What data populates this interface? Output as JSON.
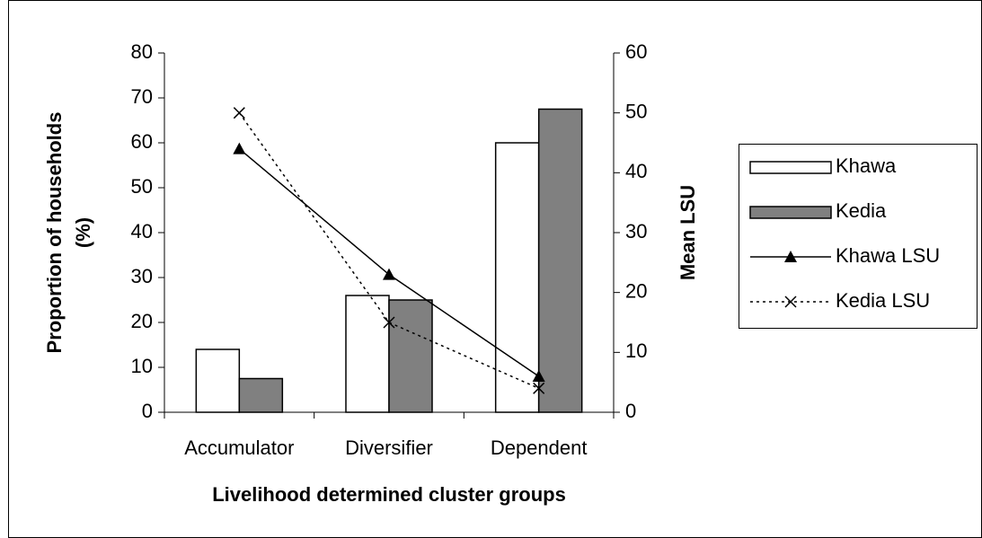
{
  "chart_data": {
    "type": "bar",
    "x_label": "Livelihood determined cluster groups",
    "y_label": [
      "Proportion of households",
      "(%)"
    ],
    "y2_label": "Mean LSU",
    "categories": [
      "Accumulator",
      "Diversifier",
      "Dependent"
    ],
    "series": [
      {
        "name": "Khawa",
        "color": "#ffffff",
        "values": [
          14,
          26,
          60
        ]
      },
      {
        "name": "Kedia",
        "color": "#808080",
        "values": [
          7.5,
          25,
          67.5
        ]
      },
      {
        "name": "Khawa LSU",
        "type": "line",
        "axis": "y2",
        "color": "#000000",
        "marker": "triangle",
        "linestyle": "solid",
        "values": [
          44,
          23,
          6
        ]
      },
      {
        "name": "Kedia LSU",
        "type": "line",
        "axis": "y2",
        "color": "#000000",
        "marker": "x",
        "linestyle": "dotted",
        "values": [
          50,
          15,
          4
        ]
      }
    ],
    "ylim": [
      0,
      80
    ],
    "yticks": [
      0,
      10,
      20,
      30,
      40,
      50,
      60,
      70,
      80
    ],
    "y2lim": [
      0,
      60
    ],
    "y2ticks": [
      0,
      10,
      20,
      30,
      40,
      50,
      60
    ],
    "grid": false,
    "legend": "right"
  }
}
